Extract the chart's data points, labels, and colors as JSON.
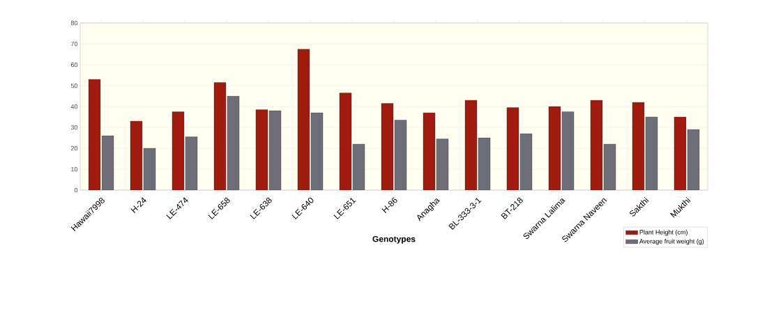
{
  "chart_data": {
    "type": "bar",
    "xlabel": "Genotypes",
    "categories": [
      "Hawaii7998",
      "H-24",
      "LE-474",
      "LE-658",
      "LE-638",
      "LE-640",
      "LE-651",
      "H-86",
      "Anagha",
      "BL-333-3-1",
      "BT-218",
      "Swarna Lalima",
      "Swarna Naveen",
      "Sakthi",
      "Mukthi"
    ],
    "series": [
      {
        "name": "Plant Height (cm)",
        "color": "#a01a10",
        "values": [
          53,
          33,
          37.5,
          51.5,
          38.5,
          67.5,
          46.5,
          41.5,
          37,
          43,
          39.5,
          40,
          43,
          42,
          35
        ]
      },
      {
        "name": "Average fruit weight (g)",
        "color": "#6e6e78",
        "values": [
          26,
          20,
          25.5,
          45,
          38,
          37,
          22,
          33.5,
          24.5,
          25,
          27,
          37.5,
          22,
          35,
          29
        ]
      }
    ],
    "ylim": [
      0,
      80
    ],
    "yticks": [
      0,
      10,
      20,
      30,
      40,
      50,
      60,
      70,
      80
    ],
    "grid": "y",
    "legend": "bottom right"
  }
}
